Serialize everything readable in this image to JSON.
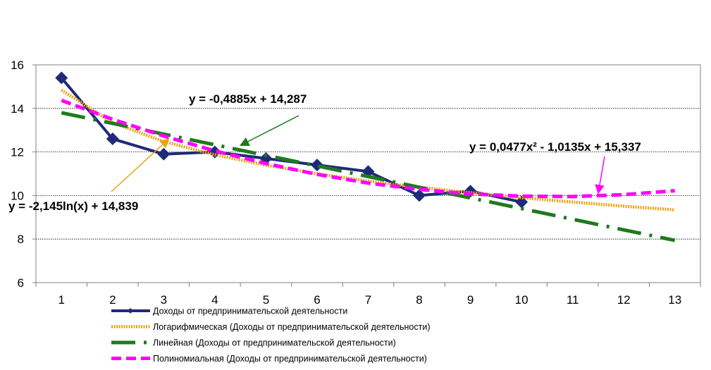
{
  "chart_data": {
    "type": "line",
    "title": "",
    "xlabel": "",
    "ylabel": "",
    "xlim": [
      0.5,
      13.5
    ],
    "ylim": [
      6,
      16
    ],
    "yticks": [
      6,
      8,
      10,
      12,
      14,
      16
    ],
    "categories": [
      "1",
      "2",
      "3",
      "4",
      "5",
      "6",
      "7",
      "8",
      "9",
      "10",
      "11",
      "12",
      "13"
    ],
    "grid": "horizontal dotted",
    "legend_position": "bottom",
    "series": [
      {
        "name": "Доходы от предпринимательской деятельности",
        "color": "#1f2a7a",
        "style": "solid-diamond",
        "x": [
          1,
          2,
          3,
          4,
          5,
          6,
          7,
          8,
          9,
          10
        ],
        "values": [
          15.4,
          12.6,
          11.9,
          12.0,
          11.7,
          11.4,
          11.1,
          10.0,
          10.2,
          9.7
        ]
      },
      {
        "name": "Логарифмическая (Доходы от предпринимательской деятельности)",
        "color": "#e8a317",
        "style": "log-trend",
        "x": [
          1,
          2,
          3,
          4,
          5,
          6,
          7,
          8,
          9,
          10,
          11,
          12,
          13
        ],
        "values": [
          14.84,
          13.35,
          12.48,
          11.87,
          11.39,
          11.0,
          10.66,
          10.38,
          10.13,
          9.9,
          9.7,
          9.51,
          9.34
        ]
      },
      {
        "name": "Линейная (Доходы от предпринимательской деятельности)",
        "color": "#1e7a1e",
        "style": "dash-dot",
        "x": [
          1,
          2,
          3,
          4,
          5,
          6,
          7,
          8,
          9,
          10,
          11,
          12,
          13
        ],
        "values": [
          13.8,
          13.31,
          12.82,
          12.33,
          11.84,
          11.36,
          10.87,
          10.38,
          9.89,
          9.4,
          8.91,
          8.42,
          7.94
        ]
      },
      {
        "name": "Полиномиальная  (Доходы от предпринимательской деятельности)",
        "color": "#ff00ff",
        "style": "dash",
        "x": [
          1,
          2,
          3,
          4,
          5,
          6,
          7,
          8,
          9,
          10,
          11,
          12,
          13
        ],
        "values": [
          14.37,
          13.5,
          12.73,
          12.05,
          11.47,
          10.97,
          10.57,
          10.28,
          10.07,
          9.97,
          9.95,
          10.04,
          10.22
        ]
      }
    ],
    "annotations": [
      {
        "text": "y = -0,4885x + 14,287",
        "color": "#1e7a1e",
        "arrow_to_x": 4.5,
        "arrow_to_y": 12.3
      },
      {
        "text": "y = 0,0477x² - 1,0135x + 15,337",
        "color": "#ff00ff",
        "arrow_to_x": 11.5,
        "arrow_to_y": 10.1
      },
      {
        "text": "y = -2,145ln(x) + 14,839",
        "color": "#e8a317",
        "arrow_to_x": 3.1,
        "arrow_to_y": 12.6
      }
    ]
  }
}
